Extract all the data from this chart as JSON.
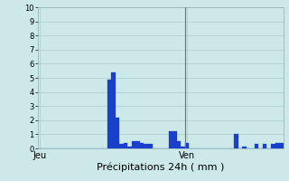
{
  "title": "",
  "xlabel": "Précipitations 24h ( mm )",
  "ylabel": "",
  "ylim": [
    0,
    10
  ],
  "background_color": "#cce8e8",
  "bar_color": "#1a3fcc",
  "bar_edge_color": "#1a3fcc",
  "grid_color": "#aacaca",
  "bar_values": [
    0,
    0,
    0,
    0,
    0,
    0,
    0,
    0,
    0,
    0,
    0,
    0,
    0,
    0,
    0,
    0,
    0,
    4.9,
    5.4,
    2.2,
    0.3,
    0.4,
    0.1,
    0.5,
    0.5,
    0.4,
    0.3,
    0.3,
    0.0,
    0.0,
    0.0,
    0.0,
    1.2,
    1.2,
    0.5,
    0.1,
    0.4,
    0.0,
    0.0,
    0.0,
    0.0,
    0.0,
    0.0,
    0.0,
    0.0,
    0.0,
    0.0,
    0.0,
    1.0,
    0.0,
    0.1,
    0.0,
    0.0,
    0.3,
    0.0,
    0.3,
    0.0,
    0.3,
    0.4,
    0.4
  ],
  "n_bars": 60,
  "xtick_positions": [
    0.5,
    36.5
  ],
  "xtick_labels": [
    "Jeu",
    "Ven"
  ],
  "ytick_positions": [
    0,
    1,
    2,
    3,
    4,
    5,
    6,
    7,
    8,
    9,
    10
  ],
  "vline_position": 36,
  "vline_color": "#707070",
  "xlabel_fontsize": 8,
  "ytick_fontsize": 6,
  "xtick_fontsize": 7
}
